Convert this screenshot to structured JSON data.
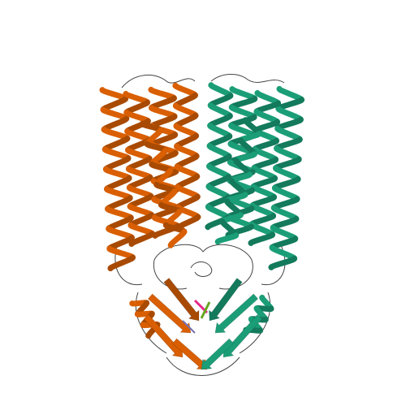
{
  "image": {
    "kind": "protein-ribbon-structure",
    "background": "#ffffff",
    "chains": [
      {
        "id": "chain-a",
        "color": "#d95f02",
        "shade": "#a84a02",
        "side": "left"
      },
      {
        "id": "chain-b",
        "color": "#1b9e77",
        "shade": "#137a5c",
        "side": "right"
      }
    ],
    "loop_color": "#444444",
    "accent_colors": [
      "#e7298a",
      "#66a61e",
      "#7570b3"
    ]
  }
}
